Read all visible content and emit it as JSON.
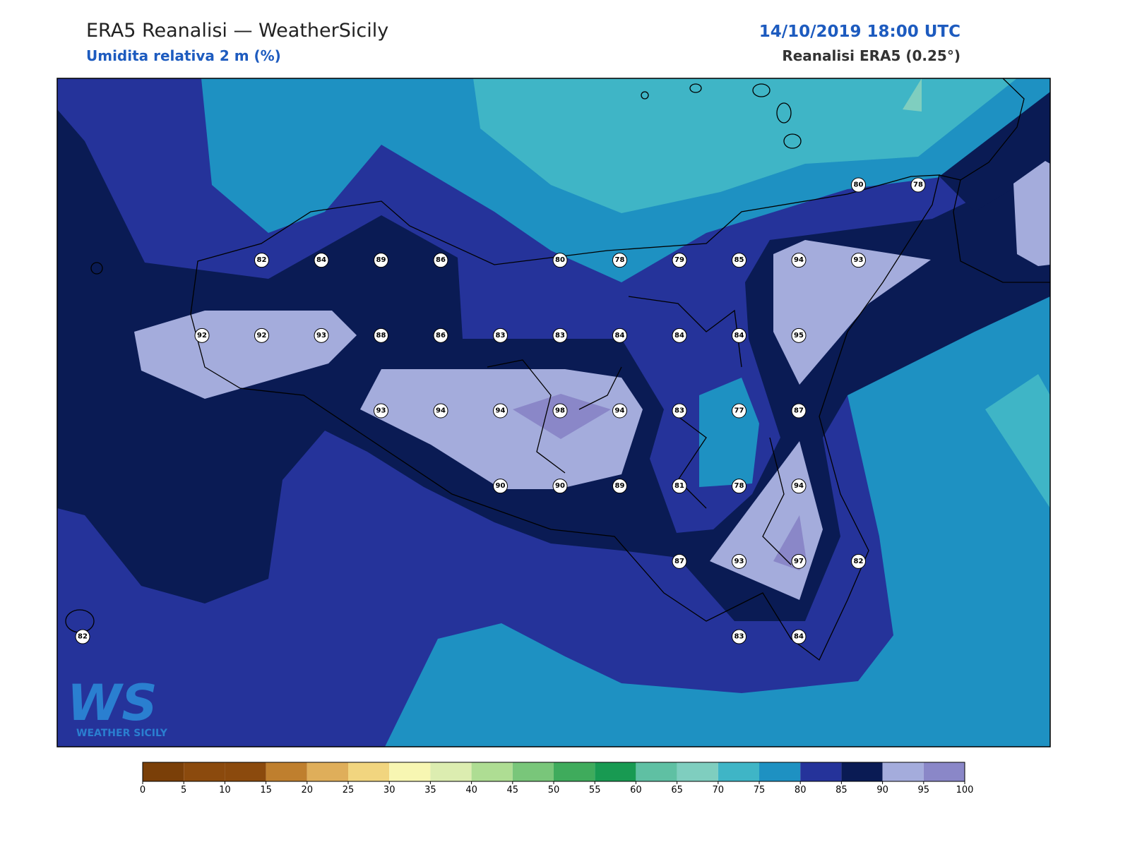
{
  "header": {
    "title": "ERA5 Reanalisi — WeatherSicily",
    "subtitle": "Umidita relativa 2 m (%)",
    "datetime": "14/10/2019 18:00 UTC",
    "source": "Reanalisi ERA5 (0.25°)"
  },
  "stations": {
    "rows": [
      [
        null,
        null,
        null,
        null,
        null,
        null,
        null,
        null,
        null,
        null,
        null,
        null,
        null,
        80,
        78
      ],
      [
        null,
        null,
        null,
        82,
        84,
        89,
        86,
        null,
        80,
        78,
        79,
        85,
        94,
        93,
        null
      ],
      [
        null,
        null,
        92,
        92,
        93,
        88,
        86,
        83,
        83,
        84,
        84,
        84,
        95,
        null,
        null
      ],
      [
        null,
        null,
        null,
        null,
        null,
        93,
        94,
        94,
        98,
        94,
        83,
        77,
        87,
        null,
        null
      ],
      [
        null,
        null,
        null,
        null,
        null,
        null,
        null,
        90,
        90,
        89,
        81,
        78,
        94,
        null,
        null
      ],
      [
        null,
        null,
        null,
        null,
        null,
        null,
        null,
        null,
        null,
        null,
        87,
        93,
        97,
        82,
        null
      ],
      [
        82,
        null,
        null,
        null,
        null,
        null,
        null,
        null,
        null,
        null,
        null,
        83,
        84,
        null,
        null
      ]
    ]
  },
  "colorbar": {
    "ticks": [
      0,
      5,
      10,
      15,
      20,
      25,
      30,
      35,
      40,
      45,
      50,
      55,
      60,
      65,
      70,
      75,
      80,
      85,
      90,
      95,
      100
    ],
    "colors": [
      "#7a3f08",
      "#8b4a0d",
      "#8b4a0d",
      "#bf7f2e",
      "#dfae5a",
      "#f1d57f",
      "#f7f6b2",
      "#dcedb0",
      "#aedd93",
      "#79c67a",
      "#3fab5c",
      "#189a52",
      "#5fc0a3",
      "#7fcebf",
      "#3fb5c6",
      "#1e91c2",
      "#25339a",
      "#0a1b54",
      "#a4acdc",
      "#8a87c8"
    ]
  },
  "logo": {
    "mark": "WS",
    "text": "WEATHER SICILY"
  }
}
